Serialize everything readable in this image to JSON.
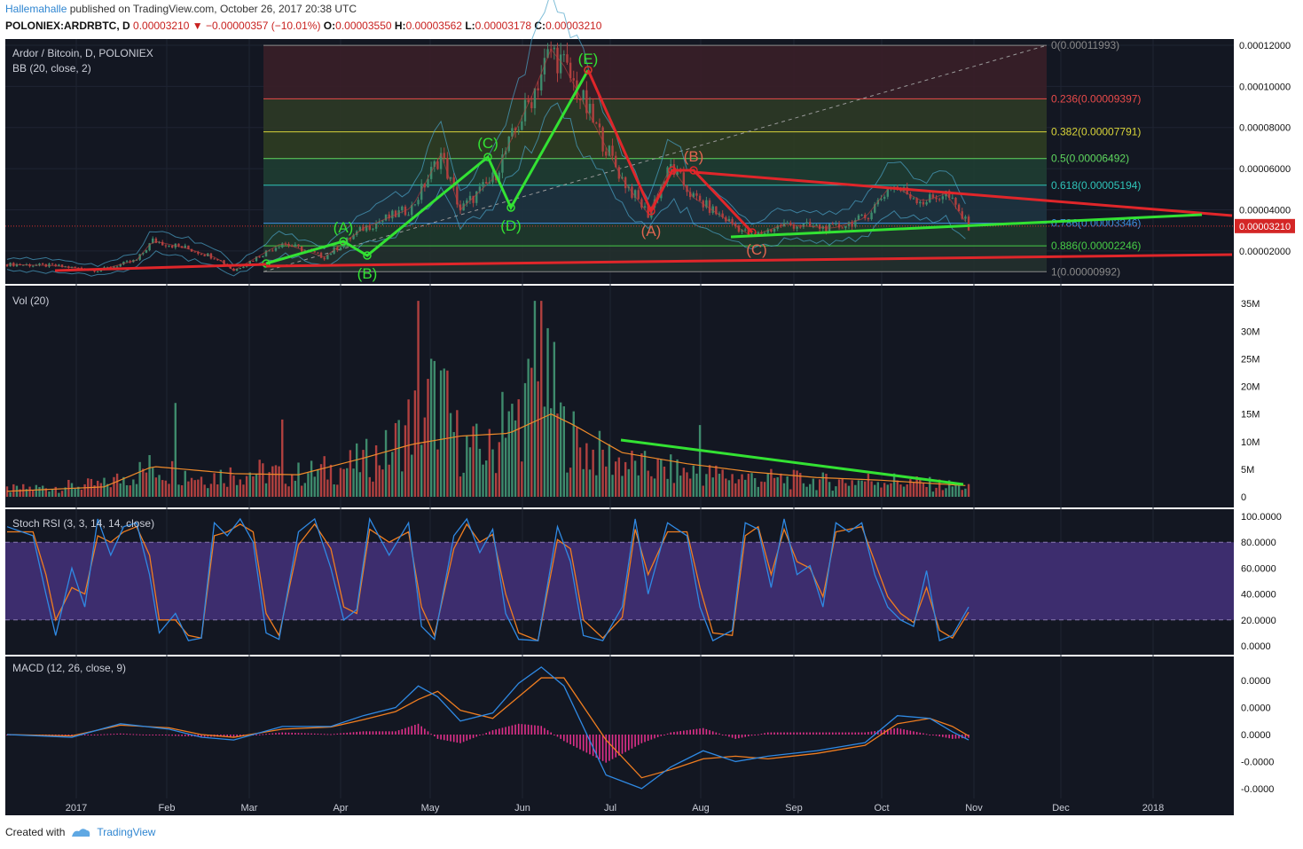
{
  "header": {
    "author": "Hallemahalle",
    "published_text": "published on TradingView.com, October 26, 2017 20:38 UTC",
    "symbol": "POLONIEX:ARDRBTC, D",
    "last": "0.00003210",
    "arrow": "▼",
    "change": "−0.00000357 (−10.01%)",
    "o_label": "O:",
    "o": "0.00003550",
    "h_label": "H:",
    "h": "0.00003562",
    "l_label": "L:",
    "l": "0.00003178",
    "c_label": "C:",
    "c": "0.00003210"
  },
  "footer": {
    "created_with": "Created with",
    "brand": "TradingView"
  },
  "colors": {
    "background": "#131722",
    "up": "#3e8a6c",
    "down": "#b0403f",
    "green_line": "#33e233",
    "red_line": "#e0262a",
    "stoch_k": "#2f89e3",
    "stoch_d": "#ef7d20",
    "stoch_band": "#3d2d6e"
  },
  "chart_data": [
    {
      "type": "candlestick",
      "title": "Ardor / Bitcoin, D, POLONIEX",
      "indicator": "BB (20, close, 2)",
      "x_ticks": [
        "2017",
        "Feb",
        "Mar",
        "Apr",
        "May",
        "Jun",
        "Jul",
        "Aug",
        "Sep",
        "Oct",
        "Nov",
        "Dec",
        "2018"
      ],
      "y_ticks": [
        "0.00002000",
        "0.00004000",
        "0.00006000",
        "0.00008000",
        "0.00010000",
        "0.00012000"
      ],
      "ylim": [
        4e-06,
        0.000123
      ],
      "last_price_label": "0.00003210",
      "close_path": [
        [
          0,
          1.35e-05
        ],
        [
          15,
          1.28e-05
        ],
        [
          28,
          1.05e-05
        ],
        [
          40,
          1.55e-05
        ],
        [
          45,
          2.5e-05
        ],
        [
          55,
          2.15e-05
        ],
        [
          65,
          1.65e-05
        ],
        [
          70,
          1.05e-05
        ],
        [
          85,
          2.4e-05
        ],
        [
          98,
          1.7e-05
        ],
        [
          110,
          3.1e-05
        ],
        [
          125,
          4.1e-05
        ],
        [
          134,
          6.7e-05
        ],
        [
          140,
          4e-05
        ],
        [
          150,
          5.5e-05
        ],
        [
          162,
          9.5e-05
        ],
        [
          168,
          0.000118
        ],
        [
          172,
          0.00011
        ],
        [
          178,
          9.2e-05
        ],
        [
          190,
          5.5e-05
        ],
        [
          198,
          3.8e-05
        ],
        [
          205,
          6.1e-05
        ],
        [
          212,
          4.6e-05
        ],
        [
          230,
          2.7e-05
        ],
        [
          240,
          3.3e-05
        ],
        [
          255,
          3.1e-05
        ],
        [
          265,
          3.6e-05
        ],
        [
          273,
          5.2e-05
        ],
        [
          283,
          4.4e-05
        ],
        [
          290,
          4.8e-05
        ],
        [
          297,
          3.21e-05
        ]
      ],
      "fibonacci": [
        {
          "level": "0",
          "value": "0.00011993"
        },
        {
          "level": "0.236",
          "value": "0.00009397"
        },
        {
          "level": "0.382",
          "value": "0.00007791"
        },
        {
          "level": "0.5",
          "value": "0.00006492"
        },
        {
          "level": "0.618",
          "value": "0.00005194"
        },
        {
          "level": "0.786",
          "value": "0.00003346"
        },
        {
          "level": "0.886",
          "value": "0.00002246"
        },
        {
          "level": "1",
          "value": "0.00000992"
        }
      ],
      "wave_labels_green": [
        "(A)",
        "(B)",
        "(C)",
        "(D)",
        "(E)"
      ],
      "wave_labels_red": [
        "(A)",
        "(B)",
        "(C)"
      ]
    },
    {
      "type": "bar",
      "title": "Vol (20)",
      "y_ticks": [
        "0",
        "5M",
        "10M",
        "15M",
        "20M",
        "25M",
        "30M",
        "35M"
      ],
      "ylim": [
        0,
        36000000
      ],
      "volume_path": [
        [
          0,
          1500000
        ],
        [
          30,
          2500000
        ],
        [
          45,
          6000000
        ],
        [
          60,
          4000000
        ],
        [
          75,
          5000000
        ],
        [
          90,
          4500000
        ],
        [
          105,
          6000000
        ],
        [
          118,
          9000000
        ],
        [
          125,
          15000000
        ],
        [
          134,
          20000000
        ],
        [
          140,
          10000000
        ],
        [
          150,
          9000000
        ],
        [
          160,
          18000000
        ],
        [
          168,
          22000000
        ],
        [
          172,
          13000000
        ],
        [
          180,
          9000000
        ],
        [
          195,
          6000000
        ],
        [
          210,
          5000000
        ],
        [
          225,
          4000000
        ],
        [
          240,
          3500000
        ],
        [
          255,
          3000000
        ],
        [
          270,
          3500000
        ],
        [
          285,
          2500000
        ],
        [
          297,
          2000000
        ]
      ],
      "volume_spikes": [
        [
          52,
          17000000
        ],
        [
          85,
          14000000
        ],
        [
          127,
          35500000
        ],
        [
          131,
          25000000
        ],
        [
          153,
          19000000
        ],
        [
          161,
          25000000
        ],
        [
          163,
          35500000
        ],
        [
          165,
          35500000
        ],
        [
          214,
          13000000
        ]
      ],
      "ma_path": [
        [
          0,
          1000000
        ],
        [
          30,
          1800000
        ],
        [
          45,
          5500000
        ],
        [
          70,
          4200000
        ],
        [
          90,
          4000000
        ],
        [
          110,
          7000000
        ],
        [
          125,
          9500000
        ],
        [
          140,
          11000000
        ],
        [
          155,
          11500000
        ],
        [
          168,
          15000000
        ],
        [
          175,
          13000000
        ],
        [
          190,
          8000000
        ],
        [
          210,
          6000000
        ],
        [
          230,
          4500000
        ],
        [
          250,
          3500000
        ],
        [
          270,
          3000000
        ],
        [
          297,
          2000000
        ]
      ]
    },
    {
      "type": "line",
      "title": "Stoch RSI (3, 3, 14, 14, close)",
      "y_ticks": [
        "0.0000",
        "20.0000",
        "40.0000",
        "60.0000",
        "80.0000",
        "100.0000"
      ],
      "ylim": [
        0,
        100
      ],
      "bands": [
        20,
        80
      ],
      "k": [
        [
          0,
          92
        ],
        [
          8,
          85
        ],
        [
          12,
          40
        ],
        [
          15,
          8
        ],
        [
          20,
          60
        ],
        [
          24,
          30
        ],
        [
          28,
          98
        ],
        [
          32,
          70
        ],
        [
          36,
          92
        ],
        [
          40,
          95
        ],
        [
          44,
          55
        ],
        [
          47,
          10
        ],
        [
          52,
          25
        ],
        [
          56,
          4
        ],
        [
          60,
          6
        ],
        [
          64,
          95
        ],
        [
          68,
          85
        ],
        [
          72,
          98
        ],
        [
          76,
          80
        ],
        [
          80,
          10
        ],
        [
          84,
          5
        ],
        [
          90,
          88
        ],
        [
          95,
          98
        ],
        [
          100,
          60
        ],
        [
          104,
          20
        ],
        [
          108,
          28
        ],
        [
          112,
          98
        ],
        [
          118,
          70
        ],
        [
          124,
          95
        ],
        [
          128,
          15
        ],
        [
          132,
          5
        ],
        [
          138,
          85
        ],
        [
          142,
          98
        ],
        [
          146,
          72
        ],
        [
          150,
          90
        ],
        [
          154,
          25
        ],
        [
          158,
          5
        ],
        [
          164,
          4
        ],
        [
          170,
          92
        ],
        [
          174,
          65
        ],
        [
          178,
          8
        ],
        [
          184,
          4
        ],
        [
          190,
          30
        ],
        [
          194,
          98
        ],
        [
          198,
          40
        ],
        [
          204,
          95
        ],
        [
          210,
          85
        ],
        [
          214,
          30
        ],
        [
          218,
          4
        ],
        [
          224,
          12
        ],
        [
          228,
          95
        ],
        [
          232,
          90
        ],
        [
          236,
          45
        ],
        [
          240,
          98
        ],
        [
          244,
          55
        ],
        [
          248,
          62
        ],
        [
          252,
          30
        ],
        [
          256,
          95
        ],
        [
          260,
          88
        ],
        [
          264,
          95
        ],
        [
          268,
          55
        ],
        [
          272,
          30
        ],
        [
          276,
          20
        ],
        [
          280,
          15
        ],
        [
          284,
          58
        ],
        [
          288,
          4
        ],
        [
          292,
          8
        ],
        [
          297,
          30
        ]
      ],
      "d": [
        [
          0,
          88
        ],
        [
          8,
          88
        ],
        [
          12,
          55
        ],
        [
          15,
          20
        ],
        [
          20,
          45
        ],
        [
          24,
          40
        ],
        [
          28,
          85
        ],
        [
          32,
          80
        ],
        [
          36,
          88
        ],
        [
          40,
          92
        ],
        [
          44,
          70
        ],
        [
          47,
          20
        ],
        [
          52,
          20
        ],
        [
          56,
          8
        ],
        [
          60,
          6
        ],
        [
          64,
          85
        ],
        [
          68,
          88
        ],
        [
          72,
          94
        ],
        [
          76,
          88
        ],
        [
          80,
          25
        ],
        [
          84,
          8
        ],
        [
          90,
          78
        ],
        [
          95,
          94
        ],
        [
          100,
          75
        ],
        [
          104,
          30
        ],
        [
          108,
          25
        ],
        [
          112,
          90
        ],
        [
          118,
          80
        ],
        [
          124,
          88
        ],
        [
          128,
          30
        ],
        [
          132,
          8
        ],
        [
          138,
          75
        ],
        [
          142,
          94
        ],
        [
          146,
          80
        ],
        [
          150,
          86
        ],
        [
          154,
          40
        ],
        [
          158,
          10
        ],
        [
          164,
          4
        ],
        [
          170,
          82
        ],
        [
          174,
          75
        ],
        [
          178,
          20
        ],
        [
          184,
          6
        ],
        [
          190,
          22
        ],
        [
          194,
          90
        ],
        [
          198,
          55
        ],
        [
          204,
          88
        ],
        [
          210,
          88
        ],
        [
          214,
          45
        ],
        [
          218,
          10
        ],
        [
          224,
          8
        ],
        [
          228,
          85
        ],
        [
          232,
          92
        ],
        [
          236,
          55
        ],
        [
          240,
          90
        ],
        [
          244,
          65
        ],
        [
          248,
          60
        ],
        [
          252,
          38
        ],
        [
          256,
          88
        ],
        [
          260,
          90
        ],
        [
          264,
          92
        ],
        [
          268,
          65
        ],
        [
          272,
          38
        ],
        [
          276,
          25
        ],
        [
          280,
          18
        ],
        [
          284,
          45
        ],
        [
          288,
          12
        ],
        [
          292,
          6
        ],
        [
          297,
          26
        ]
      ]
    },
    {
      "type": "line",
      "title": "MACD (12, 26, close, 9)",
      "y_ticks": [
        "0.0000",
        "0.0000",
        "0.0000",
        "-0.0000",
        "-0.0000"
      ],
      "ylim": [
        -2.3,
        2.3
      ],
      "macd": [
        [
          0,
          0.0
        ],
        [
          20,
          -0.1
        ],
        [
          35,
          0.4
        ],
        [
          50,
          0.2
        ],
        [
          60,
          -0.1
        ],
        [
          70,
          -0.2
        ],
        [
          85,
          0.3
        ],
        [
          100,
          0.3
        ],
        [
          110,
          0.7
        ],
        [
          120,
          1.0
        ],
        [
          127,
          1.8
        ],
        [
          133,
          1.4
        ],
        [
          140,
          0.5
        ],
        [
          150,
          0.8
        ],
        [
          158,
          1.9
        ],
        [
          165,
          2.5
        ],
        [
          172,
          1.8
        ],
        [
          185,
          -1.5
        ],
        [
          196,
          -2.0
        ],
        [
          205,
          -1.2
        ],
        [
          215,
          -0.6
        ],
        [
          225,
          -1.0
        ],
        [
          235,
          -0.8
        ],
        [
          250,
          -0.6
        ],
        [
          265,
          -0.3
        ],
        [
          275,
          0.7
        ],
        [
          285,
          0.6
        ],
        [
          292,
          0.1
        ],
        [
          297,
          -0.2
        ]
      ],
      "signal": [
        [
          0,
          0.0
        ],
        [
          20,
          -0.05
        ],
        [
          35,
          0.35
        ],
        [
          50,
          0.25
        ],
        [
          60,
          0.0
        ],
        [
          70,
          -0.1
        ],
        [
          85,
          0.2
        ],
        [
          100,
          0.28
        ],
        [
          110,
          0.55
        ],
        [
          120,
          0.85
        ],
        [
          127,
          1.3
        ],
        [
          133,
          1.6
        ],
        [
          140,
          0.9
        ],
        [
          150,
          0.6
        ],
        [
          158,
          1.4
        ],
        [
          165,
          2.1
        ],
        [
          172,
          2.1
        ],
        [
          185,
          -0.2
        ],
        [
          196,
          -1.6
        ],
        [
          205,
          -1.3
        ],
        [
          215,
          -0.9
        ],
        [
          225,
          -0.8
        ],
        [
          235,
          -0.9
        ],
        [
          250,
          -0.7
        ],
        [
          265,
          -0.4
        ],
        [
          275,
          0.4
        ],
        [
          285,
          0.6
        ],
        [
          292,
          0.3
        ],
        [
          297,
          -0.05
        ]
      ]
    }
  ]
}
